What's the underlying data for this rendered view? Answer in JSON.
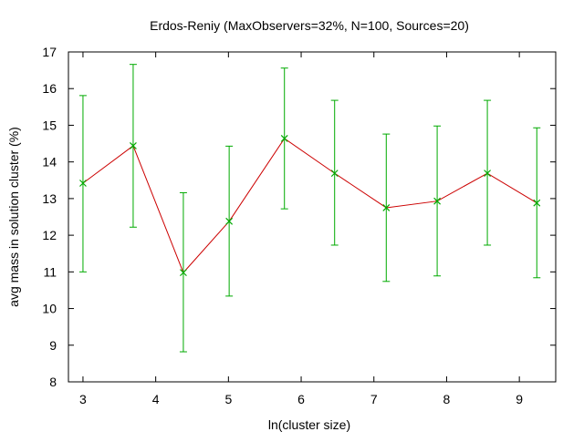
{
  "chart_data": {
    "type": "line",
    "title": "Erdos-Reniy (MaxObservers=32%, N=100, Sources=20)",
    "xlabel": "ln(cluster size)",
    "ylabel": "avg mass in solution cluster (%)",
    "xlim": [
      2.8,
      9.5
    ],
    "ylim": [
      8,
      17
    ],
    "xticks": [
      3,
      4,
      5,
      6,
      7,
      8,
      9
    ],
    "yticks": [
      8,
      9,
      10,
      11,
      12,
      13,
      14,
      15,
      16,
      17
    ],
    "grid": false,
    "legend": "none",
    "colors": {
      "line": "#cc0000",
      "errorbars": "#00aa00",
      "markers": "#00aa00",
      "axes": "#000000"
    },
    "series": [
      {
        "x": [
          3.0,
          3.69,
          4.38,
          5.01,
          5.77,
          6.46,
          7.17,
          7.87,
          8.56,
          9.24
        ],
        "y": [
          13.42,
          14.44,
          10.98,
          12.38,
          14.64,
          13.69,
          12.75,
          12.93,
          13.69,
          12.88
        ],
        "yerr_low": [
          11.0,
          12.22,
          8.82,
          10.34,
          12.72,
          11.73,
          10.74,
          10.89,
          11.73,
          10.84
        ],
        "yerr_high": [
          15.81,
          16.66,
          13.16,
          14.43,
          16.56,
          15.68,
          14.76,
          14.98,
          15.68,
          14.93
        ]
      }
    ]
  }
}
